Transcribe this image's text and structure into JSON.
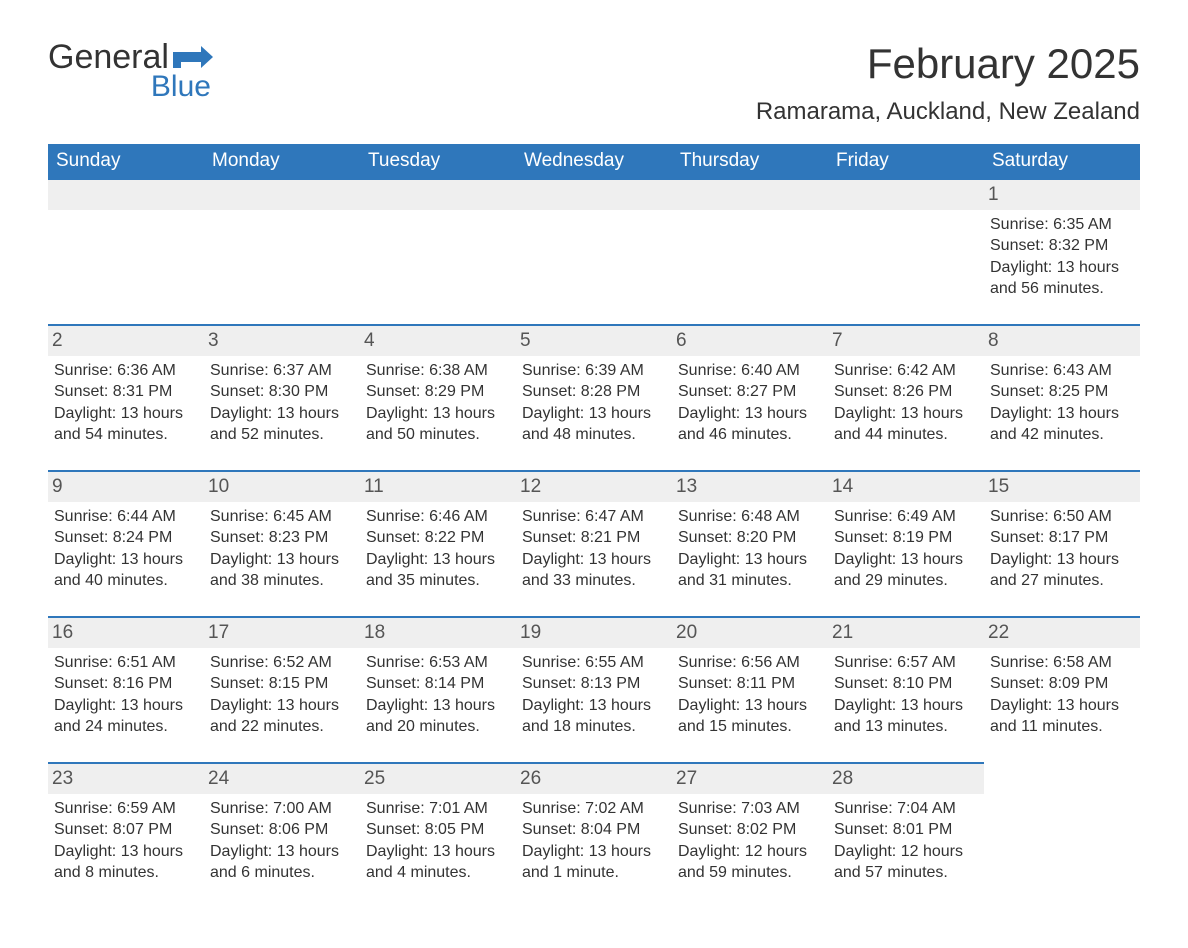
{
  "logo": {
    "text_general": "General",
    "text_blue": "Blue",
    "brand_color": "#2f77bb"
  },
  "title": "February 2025",
  "location": "Ramarama, Auckland, New Zealand",
  "colors": {
    "header_bg": "#2f77bb",
    "header_text": "#ffffff",
    "daynum_bg": "#efefef",
    "daynum_border": "#2f77bb",
    "page_bg": "#ffffff",
    "body_text": "#333333"
  },
  "day_names": [
    "Sunday",
    "Monday",
    "Tuesday",
    "Wednesday",
    "Thursday",
    "Friday",
    "Saturday"
  ],
  "weeks": [
    [
      null,
      null,
      null,
      null,
      null,
      null,
      {
        "n": "1",
        "sunrise": "Sunrise: 6:35 AM",
        "sunset": "Sunset: 8:32 PM",
        "daylight": "Daylight: 13 hours and 56 minutes."
      }
    ],
    [
      {
        "n": "2",
        "sunrise": "Sunrise: 6:36 AM",
        "sunset": "Sunset: 8:31 PM",
        "daylight": "Daylight: 13 hours and 54 minutes."
      },
      {
        "n": "3",
        "sunrise": "Sunrise: 6:37 AM",
        "sunset": "Sunset: 8:30 PM",
        "daylight": "Daylight: 13 hours and 52 minutes."
      },
      {
        "n": "4",
        "sunrise": "Sunrise: 6:38 AM",
        "sunset": "Sunset: 8:29 PM",
        "daylight": "Daylight: 13 hours and 50 minutes."
      },
      {
        "n": "5",
        "sunrise": "Sunrise: 6:39 AM",
        "sunset": "Sunset: 8:28 PM",
        "daylight": "Daylight: 13 hours and 48 minutes."
      },
      {
        "n": "6",
        "sunrise": "Sunrise: 6:40 AM",
        "sunset": "Sunset: 8:27 PM",
        "daylight": "Daylight: 13 hours and 46 minutes."
      },
      {
        "n": "7",
        "sunrise": "Sunrise: 6:42 AM",
        "sunset": "Sunset: 8:26 PM",
        "daylight": "Daylight: 13 hours and 44 minutes."
      },
      {
        "n": "8",
        "sunrise": "Sunrise: 6:43 AM",
        "sunset": "Sunset: 8:25 PM",
        "daylight": "Daylight: 13 hours and 42 minutes."
      }
    ],
    [
      {
        "n": "9",
        "sunrise": "Sunrise: 6:44 AM",
        "sunset": "Sunset: 8:24 PM",
        "daylight": "Daylight: 13 hours and 40 minutes."
      },
      {
        "n": "10",
        "sunrise": "Sunrise: 6:45 AM",
        "sunset": "Sunset: 8:23 PM",
        "daylight": "Daylight: 13 hours and 38 minutes."
      },
      {
        "n": "11",
        "sunrise": "Sunrise: 6:46 AM",
        "sunset": "Sunset: 8:22 PM",
        "daylight": "Daylight: 13 hours and 35 minutes."
      },
      {
        "n": "12",
        "sunrise": "Sunrise: 6:47 AM",
        "sunset": "Sunset: 8:21 PM",
        "daylight": "Daylight: 13 hours and 33 minutes."
      },
      {
        "n": "13",
        "sunrise": "Sunrise: 6:48 AM",
        "sunset": "Sunset: 8:20 PM",
        "daylight": "Daylight: 13 hours and 31 minutes."
      },
      {
        "n": "14",
        "sunrise": "Sunrise: 6:49 AM",
        "sunset": "Sunset: 8:19 PM",
        "daylight": "Daylight: 13 hours and 29 minutes."
      },
      {
        "n": "15",
        "sunrise": "Sunrise: 6:50 AM",
        "sunset": "Sunset: 8:17 PM",
        "daylight": "Daylight: 13 hours and 27 minutes."
      }
    ],
    [
      {
        "n": "16",
        "sunrise": "Sunrise: 6:51 AM",
        "sunset": "Sunset: 8:16 PM",
        "daylight": "Daylight: 13 hours and 24 minutes."
      },
      {
        "n": "17",
        "sunrise": "Sunrise: 6:52 AM",
        "sunset": "Sunset: 8:15 PM",
        "daylight": "Daylight: 13 hours and 22 minutes."
      },
      {
        "n": "18",
        "sunrise": "Sunrise: 6:53 AM",
        "sunset": "Sunset: 8:14 PM",
        "daylight": "Daylight: 13 hours and 20 minutes."
      },
      {
        "n": "19",
        "sunrise": "Sunrise: 6:55 AM",
        "sunset": "Sunset: 8:13 PM",
        "daylight": "Daylight: 13 hours and 18 minutes."
      },
      {
        "n": "20",
        "sunrise": "Sunrise: 6:56 AM",
        "sunset": "Sunset: 8:11 PM",
        "daylight": "Daylight: 13 hours and 15 minutes."
      },
      {
        "n": "21",
        "sunrise": "Sunrise: 6:57 AM",
        "sunset": "Sunset: 8:10 PM",
        "daylight": "Daylight: 13 hours and 13 minutes."
      },
      {
        "n": "22",
        "sunrise": "Sunrise: 6:58 AM",
        "sunset": "Sunset: 8:09 PM",
        "daylight": "Daylight: 13 hours and 11 minutes."
      }
    ],
    [
      {
        "n": "23",
        "sunrise": "Sunrise: 6:59 AM",
        "sunset": "Sunset: 8:07 PM",
        "daylight": "Daylight: 13 hours and 8 minutes."
      },
      {
        "n": "24",
        "sunrise": "Sunrise: 7:00 AM",
        "sunset": "Sunset: 8:06 PM",
        "daylight": "Daylight: 13 hours and 6 minutes."
      },
      {
        "n": "25",
        "sunrise": "Sunrise: 7:01 AM",
        "sunset": "Sunset: 8:05 PM",
        "daylight": "Daylight: 13 hours and 4 minutes."
      },
      {
        "n": "26",
        "sunrise": "Sunrise: 7:02 AM",
        "sunset": "Sunset: 8:04 PM",
        "daylight": "Daylight: 13 hours and 1 minute."
      },
      {
        "n": "27",
        "sunrise": "Sunrise: 7:03 AM",
        "sunset": "Sunset: 8:02 PM",
        "daylight": "Daylight: 12 hours and 59 minutes."
      },
      {
        "n": "28",
        "sunrise": "Sunrise: 7:04 AM",
        "sunset": "Sunset: 8:01 PM",
        "daylight": "Daylight: 12 hours and 57 minutes."
      },
      null
    ]
  ]
}
